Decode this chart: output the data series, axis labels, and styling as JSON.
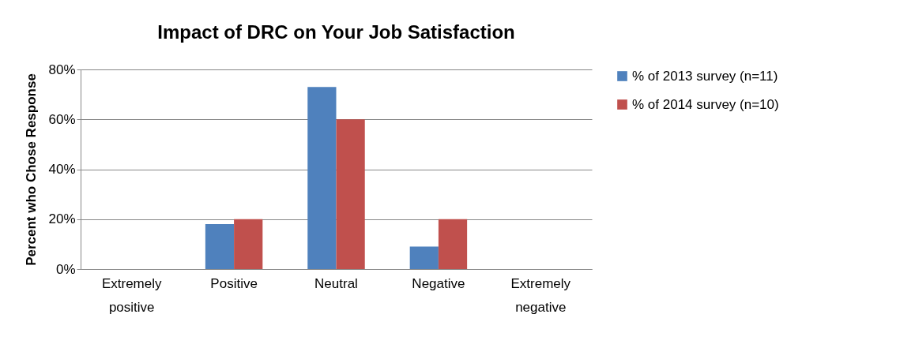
{
  "chart_data": {
    "type": "bar",
    "title": "Impact of DRC on Your Job Satisfaction",
    "ylabel": "Percent who Chose Response",
    "categories": [
      "Extremely positive",
      "Positive",
      "Neutral",
      "Negative",
      "Extremely negative"
    ],
    "series": [
      {
        "name": "% of 2013 survey (n=11)",
        "color": "#4f81bd",
        "values": [
          0,
          18,
          73,
          9,
          0
        ]
      },
      {
        "name": "% of 2014 survey (n=10)",
        "color": "#c0504d",
        "values": [
          0,
          20,
          60,
          20,
          0
        ]
      }
    ],
    "ylim": [
      0,
      80
    ],
    "yticks": [
      {
        "value": 0,
        "label": "0%"
      },
      {
        "value": 20,
        "label": "20%"
      },
      {
        "value": 40,
        "label": "40%"
      },
      {
        "value": 60,
        "label": "60%"
      },
      {
        "value": 80,
        "label": "80%"
      }
    ],
    "grid": "y",
    "legend": "right"
  }
}
